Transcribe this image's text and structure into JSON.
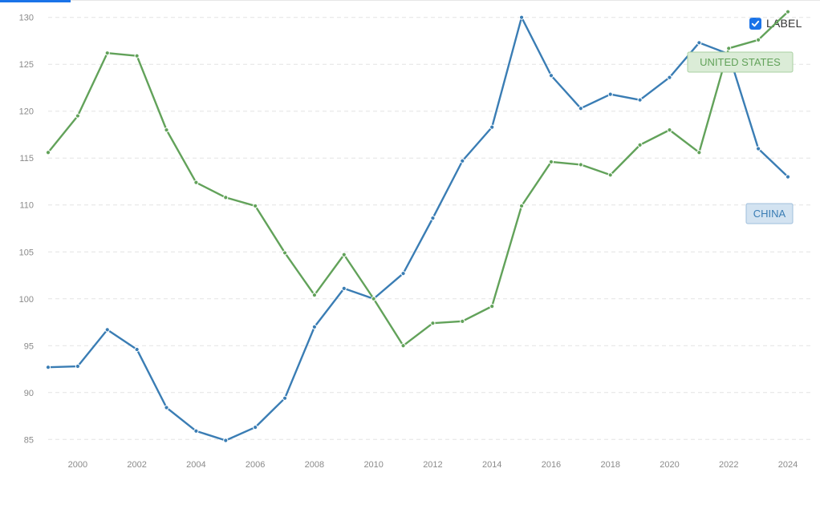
{
  "toggle": {
    "label": "LABEL",
    "checked": true
  },
  "chart_data": {
    "type": "line",
    "title": "",
    "xlabel": "",
    "ylabel": "",
    "xlim": [
      1999,
      2024
    ],
    "ylim": [
      84,
      131
    ],
    "yticks": [
      85,
      90,
      95,
      100,
      105,
      110,
      115,
      120,
      125,
      130
    ],
    "xticks": [
      2000,
      2002,
      2004,
      2006,
      2008,
      2010,
      2012,
      2014,
      2016,
      2018,
      2020,
      2022,
      2024
    ],
    "grid": "horizontal-dashed",
    "x": [
      1999,
      2000,
      2001,
      2002,
      2003,
      2004,
      2005,
      2006,
      2007,
      2008,
      2009,
      2010,
      2011,
      2012,
      2013,
      2014,
      2015,
      2016,
      2017,
      2018,
      2019,
      2020,
      2021,
      2022,
      2023,
      2024
    ],
    "series": [
      {
        "name": "CHINA",
        "color": "#3a7db4",
        "label_bg": "#d3e3f1",
        "label_border": "#9fbfdc",
        "values": [
          92.7,
          92.8,
          96.7,
          94.6,
          88.4,
          85.9,
          84.9,
          86.3,
          89.4,
          97.0,
          101.1,
          100.0,
          102.7,
          108.6,
          114.7,
          118.3,
          130.0,
          123.8,
          120.3,
          121.8,
          121.2,
          123.6,
          127.3,
          126.1,
          116.0,
          113.0
        ]
      },
      {
        "name": "UNITED STATES",
        "color": "#62a25a",
        "label_bg": "#dbecd7",
        "label_border": "#a9d0a1",
        "values": [
          115.6,
          119.5,
          126.2,
          125.9,
          118.0,
          112.4,
          110.8,
          109.9,
          104.9,
          100.4,
          104.7,
          100.0,
          95.0,
          97.4,
          97.6,
          99.2,
          109.9,
          114.6,
          114.3,
          113.2,
          116.4,
          118.0,
          115.6,
          126.7,
          127.6,
          130.6
        ]
      }
    ]
  }
}
